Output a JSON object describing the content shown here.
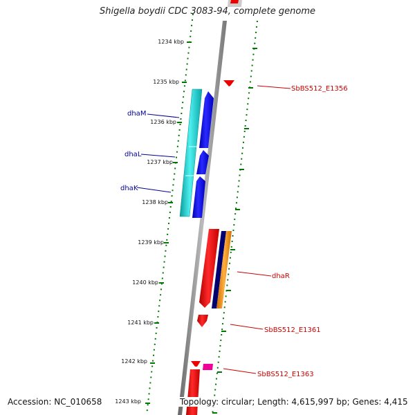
{
  "title": "Shigella boydii CDC 3083-94, complete genome",
  "footer": {
    "accession": "Accession: NC_010658",
    "topology": "Topology: circular; Length: 4,615,997 bp; Genes: 4,415"
  },
  "ticks": [
    "1234 kbp",
    "1235 kbp",
    "1236 kbp",
    "1237 kbp",
    "1238 kbp",
    "1239 kbp",
    "1240 kbp",
    "1241 kbp",
    "1242 kbp",
    "1243 kbp"
  ],
  "gene_labels": {
    "dhaM": "dhaM",
    "dhaL": "dhaL",
    "dhaK": "dhaK",
    "dhaR": "dhaR",
    "e1356": "SbBS512_E1356",
    "e1361": "SbBS512_E1361",
    "e1363": "SbBS512_E1363"
  },
  "colors": {
    "cyan": "#1ccfcf",
    "blue": "#0000ee",
    "red": "#ee0000",
    "navy": "#000070",
    "orange": "#ff9900",
    "magenta": "#ee0099",
    "tick_green": "#007700",
    "backbone": "#888888"
  }
}
